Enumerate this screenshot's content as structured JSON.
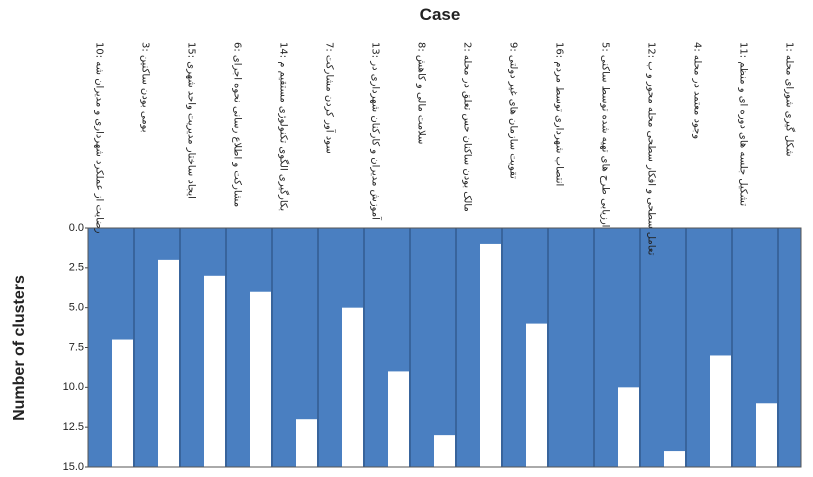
{
  "chart_data": {
    "type": "icicle",
    "title": "Case",
    "y_label": "Number of clusters",
    "cases": [
      "10: رضایت از عملکرد شهرداری و مدیران شه",
      "3: بومی بودن ساکنین",
      "15: ایجاد ساختار مدیریت واحد شهری",
      "6: مشارکت و اطلاع رسانی نحوه اجرای",
      "14: بکارگیری الگوی تکنولوژی مستقیم م",
      "7: سود آور کردن مشارکت",
      "13: آموزش مدیران و کارکنان شهرداری در",
      "8: سلامت مالی و کاهش",
      "2: مالک بودن ساکنان حس تعلق در محله",
      "9: تقویت سازمان های غیر دولتی",
      "16: انتصاب شهرداری توسط مردم",
      "5: ارزیابی طرح های تهیه شده توسط ساکنی",
      "12: تعامل سطحی و افکار سطحی محله محور و ب",
      "4: وجود معتمد در محله",
      "11: تشکیل جلسه های دوره ای و منظم",
      "1: شکل گیری شورای محله"
    ],
    "values": [
      7,
      2,
      3,
      4,
      12,
      5,
      9,
      13,
      1,
      6,
      15,
      10,
      14,
      8,
      11
    ],
    "ylim": [
      0,
      15
    ],
    "y_inverted": true,
    "yticks": [
      {
        "value": 0,
        "label": "0.0"
      },
      2.5,
      {
        "value": 5,
        "label": "5.0"
      },
      7.5,
      {
        "value": 10,
        "label": "10.0"
      },
      12.5,
      {
        "value": 15,
        "label": "15.0"
      }
    ],
    "color": "#4a7fc1",
    "join_color": "#ffffff"
  }
}
